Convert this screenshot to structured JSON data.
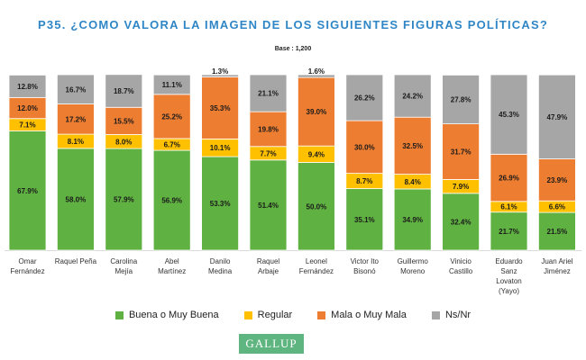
{
  "title": "P35. ¿COMO VALORA LA IMAGEN DE LOS SIGUIENTES FIGURAS POLÍTICAS?",
  "subtitle": "Base : 1,200",
  "logo_text": "GALLUP",
  "colors": {
    "Buena o Muy Buena": "#5fb142",
    "Regular": "#ffc000",
    "Mala o Muy Mala": "#ed7d31",
    "Ns/Nr": "#a6a6a6"
  },
  "chart_data": {
    "type": "bar",
    "stacked": true,
    "title": "P35. ¿COMO VALORA LA IMAGEN DE LOS SIGUIENTES FIGURAS POLÍTICAS?",
    "subtitle": "Base : 1,200",
    "categories": [
      [
        "Omar",
        "Fernández"
      ],
      [
        "Raquel Peña"
      ],
      [
        "Carolina",
        "Mejía"
      ],
      [
        "Abel",
        "Martínez"
      ],
      [
        "Danilo",
        "Medina"
      ],
      [
        "Raquel",
        "Arbaje"
      ],
      [
        "Leonel",
        "Fernández"
      ],
      [
        "Victor Ito",
        "Bisonó"
      ],
      [
        "Guillermo",
        "Moreno"
      ],
      [
        "Vinicio",
        "Castillo"
      ],
      [
        "Eduardo",
        "Sanz",
        "Lovaton",
        "(Yayo)"
      ],
      [
        "Juan Ariel",
        "Jiménez"
      ]
    ],
    "series": [
      {
        "name": "Buena o Muy Buena",
        "values": [
          67.9,
          58.0,
          57.9,
          56.9,
          53.3,
          51.4,
          50.0,
          35.1,
          34.9,
          32.4,
          21.7,
          21.5
        ],
        "labels": [
          "67.9%",
          "58.0%",
          "57.9%",
          "56.9%",
          "53.3%",
          "51.4%",
          "50.0%",
          "35.1%",
          "34.9%",
          "32.4%",
          "21.7%",
          "21.5%"
        ]
      },
      {
        "name": "Regular",
        "values": [
          7.1,
          8.1,
          8.0,
          6.7,
          10.1,
          7.7,
          9.4,
          8.7,
          8.4,
          7.9,
          6.1,
          6.6
        ],
        "labels": [
          "7.1%",
          "8.1%",
          "8.0%",
          "6.7%",
          "10.1%",
          "7.7%",
          "9.4%",
          "8.7%",
          "8.4%",
          "7.9%",
          "6.1%",
          "6.6%"
        ]
      },
      {
        "name": "Mala o Muy Mala",
        "values": [
          12.0,
          17.2,
          15.5,
          25.2,
          35.3,
          19.8,
          39.0,
          30.0,
          32.5,
          31.7,
          26.9,
          23.9
        ],
        "labels": [
          "12.0%",
          "17.2%",
          "15.5%",
          "25.2%",
          "35.3%",
          "19.8%",
          "39.0%",
          "30.0%",
          "32.5%",
          "31.7%",
          "26.9%",
          "23.9%"
        ]
      },
      {
        "name": "Ns/Nr",
        "values": [
          12.8,
          16.7,
          18.7,
          11.1,
          1.3,
          21.1,
          1.6,
          26.2,
          24.2,
          27.8,
          45.3,
          47.9
        ],
        "labels": [
          "12.8%",
          "16.7%",
          "18.7%",
          "11.1%",
          "1.3%",
          "21.1%",
          "1.6%",
          "26.2%",
          "24.2%",
          "27.8%",
          "45.3%",
          "47.9%"
        ]
      }
    ],
    "ylim": [
      0,
      100
    ],
    "legend": "bottom",
    "grid": false
  }
}
